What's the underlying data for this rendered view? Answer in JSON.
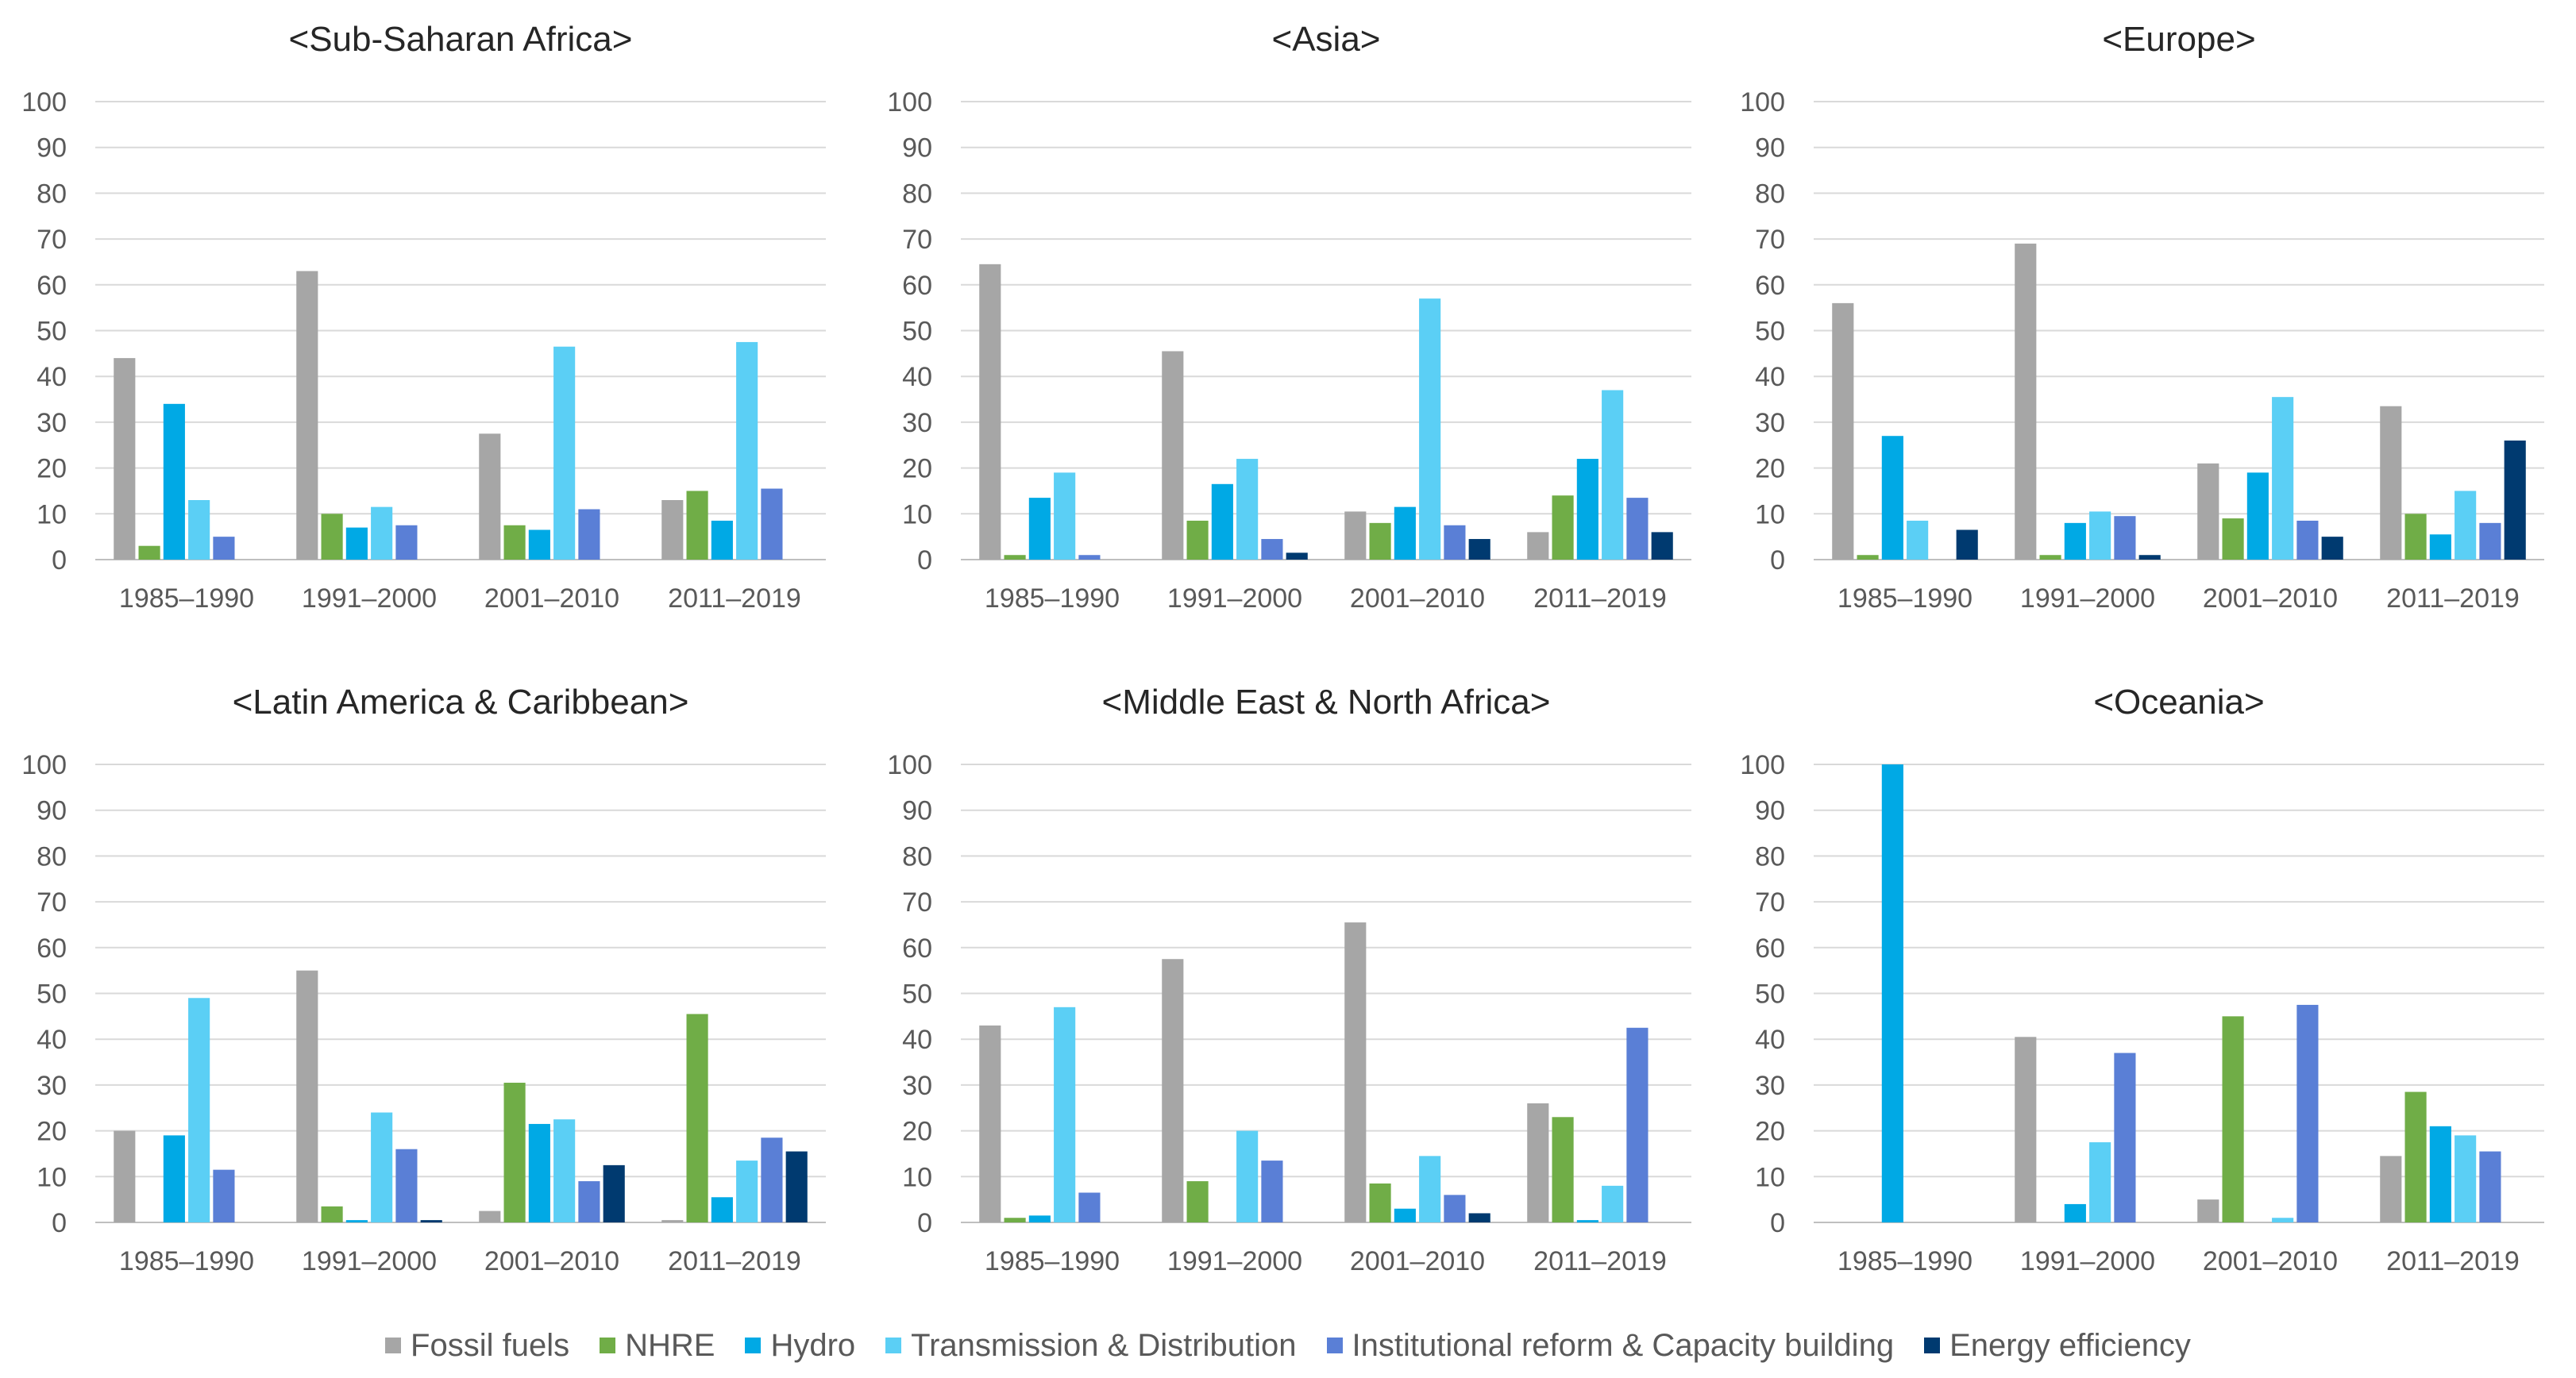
{
  "legend": [
    {
      "name": "Fossil fuels",
      "color": "#A6A6A6"
    },
    {
      "name": "NHRE",
      "color": "#70AD47"
    },
    {
      "name": "Hydro",
      "color": "#00A9E5"
    },
    {
      "name": "Transmission & Distribution",
      "color": "#5BCFF5"
    },
    {
      "name": "Institutional reform & Capacity building",
      "color": "#5A7FD6"
    },
    {
      "name": "Energy efficiency",
      "color": "#003A70"
    }
  ],
  "chart_data": [
    {
      "type": "bar",
      "title": "<Sub-Saharan Africa>",
      "categories": [
        "1985–1990",
        "1991–2000",
        "2001–2010",
        "2011–2019"
      ],
      "ylim": [
        0,
        100
      ],
      "yticks": [
        "0",
        "10",
        "20",
        "30",
        "40",
        "50",
        "60",
        "70",
        "80",
        "90",
        "100"
      ],
      "grid": true,
      "series": [
        {
          "name": "Fossil fuels",
          "values": [
            44,
            63,
            27.5,
            13
          ]
        },
        {
          "name": "NHRE",
          "values": [
            3,
            10,
            7.5,
            15
          ]
        },
        {
          "name": "Hydro",
          "values": [
            34,
            7,
            6.5,
            8.5
          ]
        },
        {
          "name": "Transmission & Distribution",
          "values": [
            13,
            11.5,
            46.5,
            47.5
          ]
        },
        {
          "name": "Institutional reform & Capacity building",
          "values": [
            5,
            7.5,
            11,
            15.5
          ]
        },
        {
          "name": "Energy efficiency",
          "values": [
            0,
            0,
            0,
            0
          ]
        }
      ]
    },
    {
      "type": "bar",
      "title": "<Asia>",
      "categories": [
        "1985–1990",
        "1991–2000",
        "2001–2010",
        "2011–2019"
      ],
      "ylim": [
        0,
        100
      ],
      "yticks": [
        "0",
        "10",
        "20",
        "30",
        "40",
        "50",
        "60",
        "70",
        "80",
        "90",
        "100"
      ],
      "grid": true,
      "series": [
        {
          "name": "Fossil fuels",
          "values": [
            64.5,
            45.5,
            10.5,
            6
          ]
        },
        {
          "name": "NHRE",
          "values": [
            1,
            8.5,
            8,
            14
          ]
        },
        {
          "name": "Hydro",
          "values": [
            13.5,
            16.5,
            11.5,
            22
          ]
        },
        {
          "name": "Transmission & Distribution",
          "values": [
            19,
            22,
            57,
            37
          ]
        },
        {
          "name": "Institutional reform & Capacity building",
          "values": [
            1,
            4.5,
            7.5,
            13.5
          ]
        },
        {
          "name": "Energy efficiency",
          "values": [
            0,
            1.5,
            4.5,
            6
          ]
        }
      ]
    },
    {
      "type": "bar",
      "title": "<Europe>",
      "categories": [
        "1985–1990",
        "1991–2000",
        "2001–2010",
        "2011–2019"
      ],
      "ylim": [
        0,
        100
      ],
      "yticks": [
        "0",
        "10",
        "20",
        "30",
        "40",
        "50",
        "60",
        "70",
        "80",
        "90",
        "100"
      ],
      "grid": true,
      "series": [
        {
          "name": "Fossil fuels",
          "values": [
            56,
            69,
            21,
            33.5
          ]
        },
        {
          "name": "NHRE",
          "values": [
            1,
            1,
            9,
            10
          ]
        },
        {
          "name": "Hydro",
          "values": [
            27,
            8,
            19,
            5.5
          ]
        },
        {
          "name": "Transmission & Distribution",
          "values": [
            8.5,
            10.5,
            35.5,
            15
          ]
        },
        {
          "name": "Institutional reform & Capacity building",
          "values": [
            0,
            9.5,
            8.5,
            8
          ]
        },
        {
          "name": "Energy efficiency",
          "values": [
            6.5,
            1,
            5,
            26
          ]
        }
      ]
    },
    {
      "type": "bar",
      "title": "<Latin America & Caribbean>",
      "categories": [
        "1985–1990",
        "1991–2000",
        "2001–2010",
        "2011–2019"
      ],
      "ylim": [
        0,
        100
      ],
      "yticks": [
        "0",
        "10",
        "20",
        "30",
        "40",
        "50",
        "60",
        "70",
        "80",
        "90",
        "100"
      ],
      "grid": true,
      "series": [
        {
          "name": "Fossil fuels",
          "values": [
            20,
            55,
            2.5,
            0.5
          ]
        },
        {
          "name": "NHRE",
          "values": [
            0,
            3.5,
            30.5,
            45.5
          ]
        },
        {
          "name": "Hydro",
          "values": [
            19,
            0.5,
            21.5,
            5.5
          ]
        },
        {
          "name": "Transmission & Distribution",
          "values": [
            49,
            24,
            22.5,
            13.5
          ]
        },
        {
          "name": "Institutional reform & Capacity building",
          "values": [
            11.5,
            16,
            9,
            18.5
          ]
        },
        {
          "name": "Energy efficiency",
          "values": [
            0,
            0.5,
            12.5,
            15.5
          ]
        }
      ]
    },
    {
      "type": "bar",
      "title": "<Middle East & North Africa>",
      "categories": [
        "1985–1990",
        "1991–2000",
        "2001–2010",
        "2011–2019"
      ],
      "ylim": [
        0,
        100
      ],
      "yticks": [
        "0",
        "10",
        "20",
        "30",
        "40",
        "50",
        "60",
        "70",
        "80",
        "90",
        "100"
      ],
      "grid": true,
      "series": [
        {
          "name": "Fossil fuels",
          "values": [
            43,
            57.5,
            65.5,
            26
          ]
        },
        {
          "name": "NHRE",
          "values": [
            1,
            9,
            8.5,
            23
          ]
        },
        {
          "name": "Hydro",
          "values": [
            1.5,
            0,
            3,
            0.5
          ]
        },
        {
          "name": "Transmission & Distribution",
          "values": [
            47,
            20,
            14.5,
            8
          ]
        },
        {
          "name": "Institutional reform & Capacity building",
          "values": [
            6.5,
            13.5,
            6,
            42.5
          ]
        },
        {
          "name": "Energy efficiency",
          "values": [
            0,
            0,
            2,
            0
          ]
        }
      ]
    },
    {
      "type": "bar",
      "title": "<Oceania>",
      "categories": [
        "1985–1990",
        "1991–2000",
        "2001–2010",
        "2011–2019"
      ],
      "ylim": [
        0,
        100
      ],
      "yticks": [
        "0",
        "10",
        "20",
        "30",
        "40",
        "50",
        "60",
        "70",
        "80",
        "90",
        "100"
      ],
      "grid": true,
      "series": [
        {
          "name": "Fossil fuels",
          "values": [
            0,
            40.5,
            5,
            14.5
          ]
        },
        {
          "name": "NHRE",
          "values": [
            0,
            0,
            45,
            28.5
          ]
        },
        {
          "name": "Hydro",
          "values": [
            100,
            4,
            0,
            21
          ]
        },
        {
          "name": "Transmission & Distribution",
          "values": [
            0,
            17.5,
            1,
            19
          ]
        },
        {
          "name": "Institutional reform & Capacity building",
          "values": [
            0,
            37,
            47.5,
            15.5
          ]
        },
        {
          "name": "Energy efficiency",
          "values": [
            0,
            0,
            0,
            0
          ]
        }
      ]
    }
  ]
}
